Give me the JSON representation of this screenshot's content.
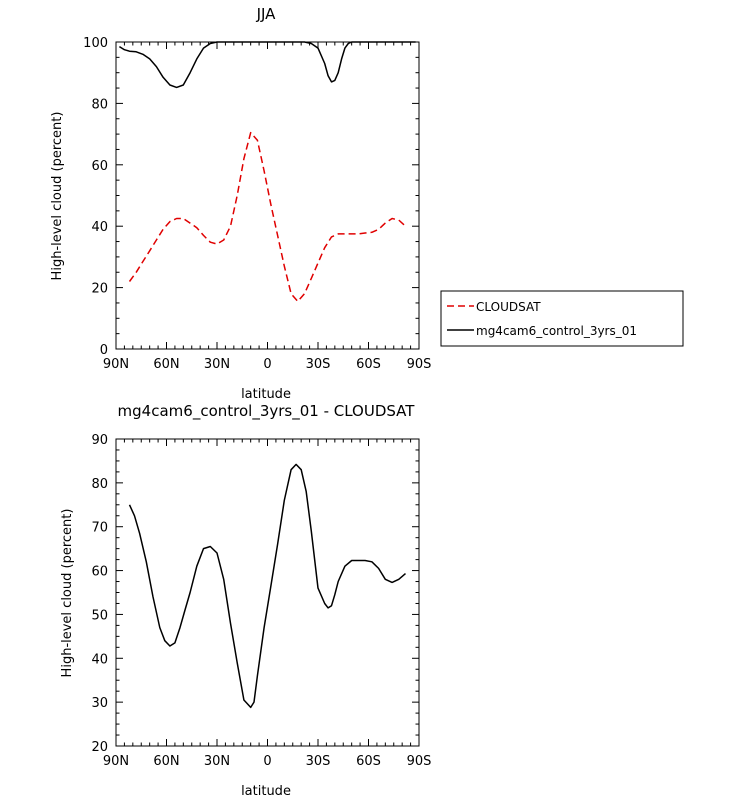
{
  "chart_data": [
    {
      "type": "line",
      "title": "JJA",
      "xlabel": "latitude",
      "ylabel": "High-level cloud (percent)",
      "xlim": [
        90,
        -90
      ],
      "ylim": [
        0,
        100
      ],
      "xticks": [
        90,
        60,
        30,
        0,
        -30,
        -60,
        -90
      ],
      "xtick_labels": [
        "90N",
        "60N",
        "30N",
        "0",
        "30S",
        "60S",
        "90S"
      ],
      "yticks": [
        0,
        20,
        40,
        60,
        80,
        100
      ],
      "ytick_labels": [
        "0",
        "20",
        "40",
        "60",
        "80",
        "100"
      ],
      "legend": "right",
      "series": [
        {
          "name": "CLOUDSAT",
          "color": "#e00000",
          "dash": "dashed",
          "x": [
            82,
            78,
            74,
            70,
            66,
            62,
            58,
            54,
            50,
            46,
            42,
            38,
            34,
            30,
            26,
            22,
            18,
            14,
            10,
            6,
            2,
            -2,
            -6,
            -10,
            -14,
            -18,
            -22,
            -26,
            -30,
            -34,
            -38,
            -42,
            -46,
            -50,
            -54,
            -58,
            -62,
            -66,
            -70,
            -74,
            -78,
            -82
          ],
          "y": [
            22,
            25,
            28.5,
            32,
            35.5,
            39,
            41.5,
            42.5,
            42.5,
            41,
            39.5,
            37,
            34.8,
            34.2,
            35.5,
            40,
            50,
            62,
            70.5,
            68,
            58,
            47,
            37,
            27,
            18,
            15.5,
            18,
            23,
            28,
            33,
            36.5,
            37.5,
            37.5,
            37.5,
            37.5,
            37.8,
            38,
            39,
            41,
            42.5,
            42,
            40
          ]
        },
        {
          "name": "mg4cam6_control_3yrs_01",
          "color": "#000000",
          "dash": "solid",
          "x": [
            88,
            85,
            82,
            78,
            74,
            70,
            66,
            62,
            58,
            54,
            50,
            46,
            42,
            38,
            34,
            30,
            26,
            22,
            18,
            14,
            10,
            6,
            2,
            -2,
            -6,
            -10,
            -14,
            -18,
            -22,
            -26,
            -30,
            -34,
            -36,
            -38,
            -40,
            -42,
            -44,
            -46,
            -48,
            -50,
            -54,
            -58,
            -62,
            -66,
            -70,
            -74,
            -78,
            -82,
            -85,
            -88
          ],
          "y": [
            98.5,
            97.5,
            97,
            96.8,
            96,
            94.5,
            92,
            88.5,
            86,
            85.2,
            86,
            90,
            94.5,
            98,
            99.5,
            100,
            100,
            100,
            100,
            100,
            100,
            100,
            100,
            100,
            100,
            100,
            100,
            100,
            100,
            99.5,
            98,
            93,
            89,
            87,
            87.5,
            90,
            94.5,
            98,
            99.5,
            100,
            100,
            100,
            100,
            100,
            100,
            100,
            100,
            100,
            100,
            100
          ]
        }
      ]
    },
    {
      "type": "line",
      "title": "mg4cam6_control_3yrs_01 - CLOUDSAT",
      "xlabel": "latitude",
      "ylabel": "High-level cloud (percent)",
      "xlim": [
        90,
        -90
      ],
      "ylim": [
        20,
        90
      ],
      "xticks": [
        90,
        60,
        30,
        0,
        -30,
        -60,
        -90
      ],
      "xtick_labels": [
        "90N",
        "60N",
        "30N",
        "0",
        "30S",
        "60S",
        "90S"
      ],
      "yticks": [
        20,
        30,
        40,
        50,
        60,
        70,
        80,
        90
      ],
      "ytick_labels": [
        "20",
        "30",
        "40",
        "50",
        "60",
        "70",
        "80",
        "90"
      ],
      "series": [
        {
          "name": "",
          "color": "#000000",
          "dash": "solid",
          "x": [
            82,
            79,
            76,
            72,
            68,
            64,
            61,
            58,
            55,
            52,
            49,
            46,
            42,
            38,
            34,
            30,
            26,
            22,
            18,
            14,
            10,
            8,
            6,
            2,
            -2,
            -6,
            -10,
            -14,
            -17,
            -20,
            -23,
            -26,
            -30,
            -34,
            -36,
            -38,
            -40,
            -42,
            -46,
            -50,
            -54,
            -58,
            -62,
            -66,
            -70,
            -74,
            -78,
            -82
          ],
          "y": [
            75,
            72.5,
            68.5,
            62,
            54,
            47,
            44,
            42.8,
            43.5,
            47,
            51,
            55,
            61,
            65,
            65.5,
            64,
            58,
            48,
            39,
            30.5,
            28.8,
            30,
            36,
            47,
            56.5,
            66,
            76,
            83,
            84.2,
            83,
            78,
            69,
            56,
            52.5,
            51.5,
            52,
            54.5,
            57.5,
            61,
            62.3,
            62.3,
            62.3,
            62,
            60.5,
            58,
            57.3,
            58,
            59.3
          ]
        }
      ]
    }
  ]
}
